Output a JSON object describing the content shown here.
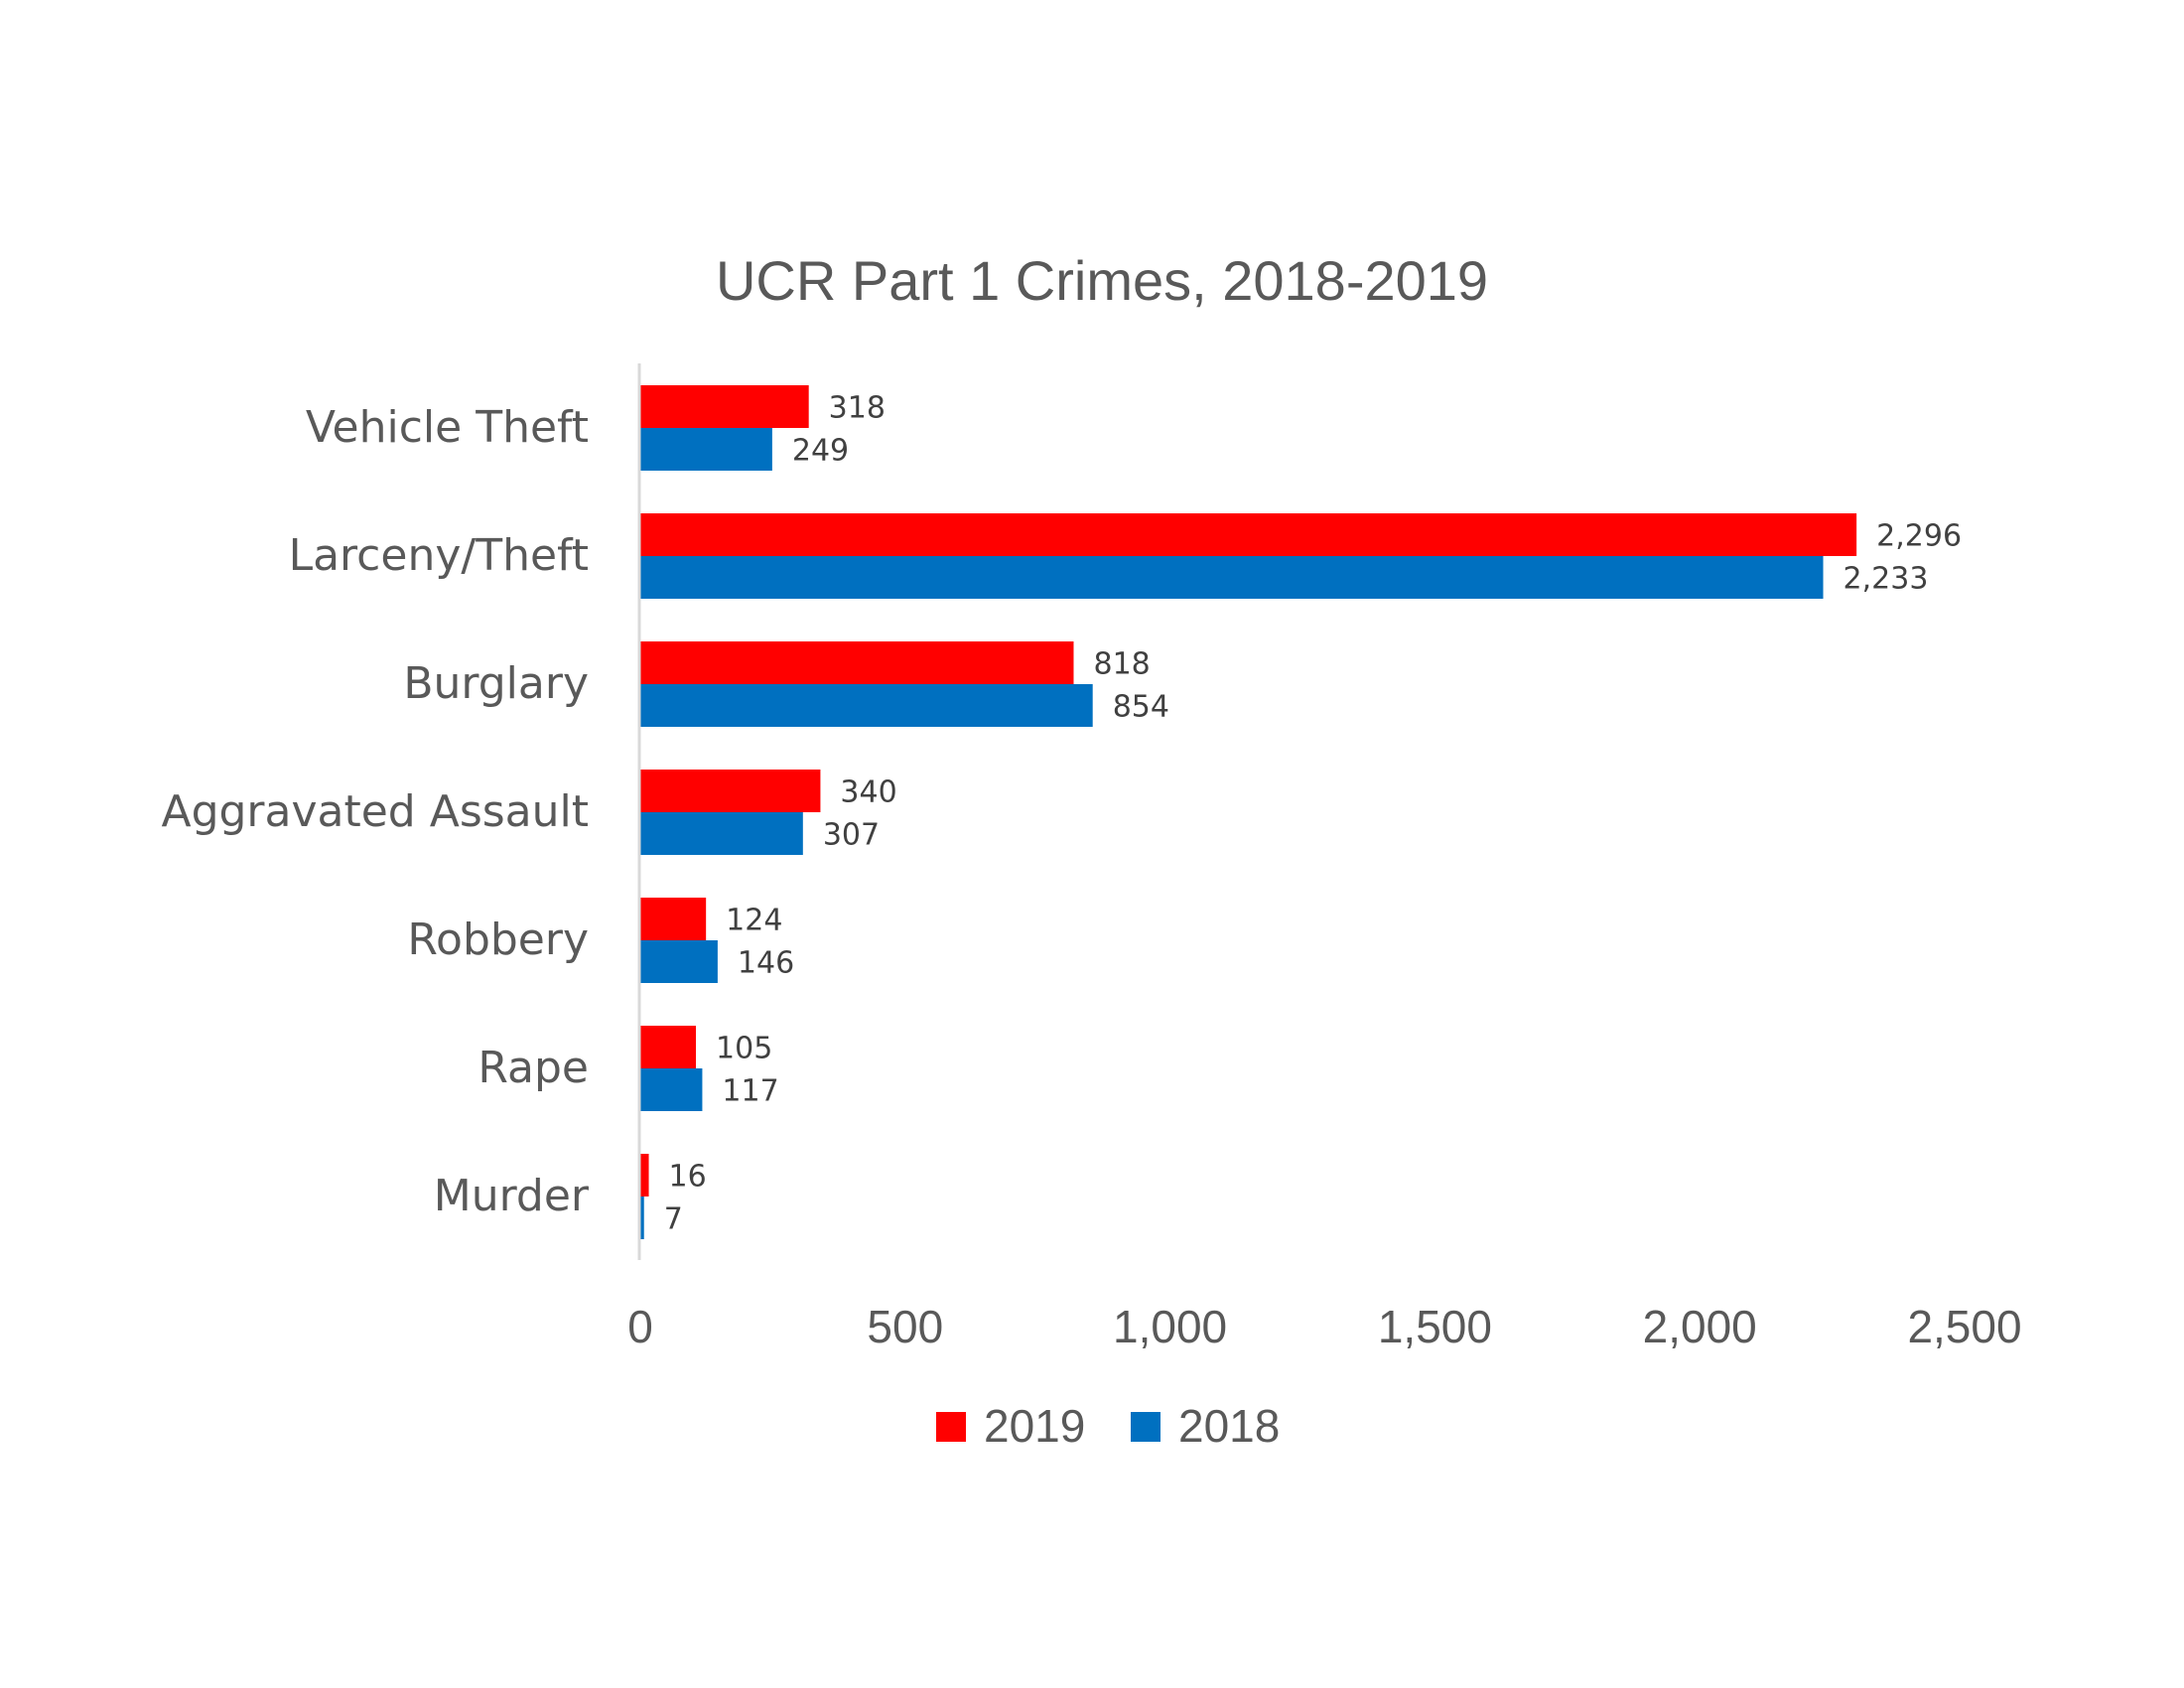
{
  "chart_data": {
    "type": "bar",
    "orientation": "horizontal",
    "title": "UCR Part 1 Crimes, 2018-2019",
    "xlabel": "",
    "ylabel": "",
    "categories": [
      "Vehicle Theft",
      "Larceny/Theft",
      "Burglary",
      "Aggravated Assault",
      "Robbery",
      "Rape",
      "Murder"
    ],
    "series": [
      {
        "name": "2019",
        "color": "#FF0000",
        "values": [
          318,
          2296,
          818,
          340,
          124,
          105,
          16
        ],
        "labels": [
          "318",
          "2,296",
          "818",
          "340",
          "124",
          "105",
          "16"
        ]
      },
      {
        "name": "2018",
        "color": "#0070C0",
        "values": [
          249,
          2233,
          854,
          307,
          146,
          117,
          7
        ],
        "labels": [
          "249",
          "2,233",
          "854",
          "307",
          "146",
          "117",
          "7"
        ]
      }
    ],
    "xlim": [
      0,
      2500
    ],
    "xticks": [
      0,
      500,
      1000,
      1500,
      2000,
      2500
    ],
    "xtick_labels": [
      "0",
      "500",
      "1,000",
      "1,500",
      "2,000",
      "2,500"
    ],
    "grid": false,
    "legend": {
      "position": "bottom",
      "entries": [
        "2019",
        "2018"
      ]
    },
    "axis_color": "#D9D9D9",
    "text_color": "#595959"
  }
}
